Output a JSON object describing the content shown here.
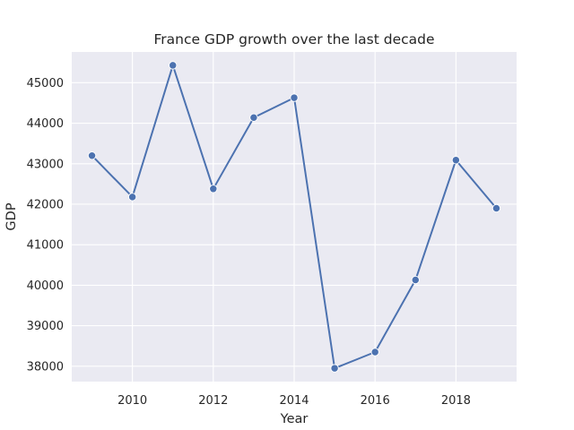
{
  "chart_data": {
    "type": "line",
    "title": "France GDP growth over the last decade",
    "xlabel": "Year",
    "ylabel": "GDP",
    "x": [
      2009,
      2010,
      2011,
      2012,
      2013,
      2014,
      2015,
      2016,
      2017,
      2018,
      2019
    ],
    "series": [
      {
        "values": [
          43200,
          42180,
          45430,
          42380,
          44140,
          44630,
          37950,
          38350,
          40130,
          43090,
          41900
        ]
      }
    ],
    "x_ticks": [
      2010,
      2012,
      2014,
      2016,
      2018
    ],
    "y_ticks": [
      38000,
      39000,
      40000,
      41000,
      42000,
      43000,
      44000,
      45000
    ],
    "xlim": [
      2008.5,
      2019.5
    ],
    "ylim": [
      37620,
      45760
    ],
    "grid": true,
    "colors": {
      "background": "#EAEAF2",
      "grid": "#FFFFFF",
      "line": "#4C72B0",
      "marker_edge": "#FFFFFF"
    }
  }
}
